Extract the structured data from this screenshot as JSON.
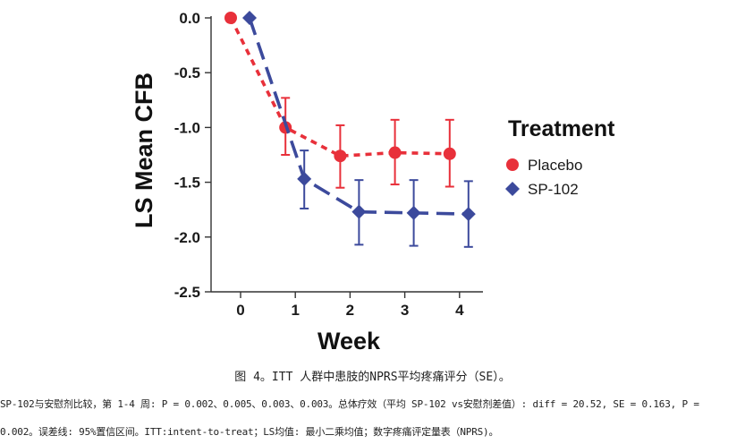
{
  "chart_data": {
    "type": "line",
    "ylabel": "LS Mean CFB",
    "xlabel": "Week",
    "ylim": [
      -2.5,
      0.0
    ],
    "yticks": [
      "0.0",
      "-0.5",
      "-1.0",
      "-1.5",
      "-2.0",
      "-2.5"
    ],
    "yticks_values": [
      0.0,
      -0.5,
      -1.0,
      -1.5,
      -2.0,
      -2.5
    ],
    "xticks": [
      "0",
      "1",
      "2",
      "3",
      "4"
    ],
    "xticks_values": [
      0,
      1,
      2,
      3,
      4
    ],
    "legend": {
      "title": "Treatment",
      "placement": "right"
    },
    "series": [
      {
        "name": "Placebo",
        "color": "#e8303a",
        "marker": "circle",
        "line_style": "short-dash",
        "x": [
          0,
          1,
          2,
          3,
          4
        ],
        "y": [
          0.0,
          -1.0,
          -1.26,
          -1.23,
          -1.24
        ],
        "ci_low": [
          null,
          -1.25,
          -1.55,
          -1.52,
          -1.54
        ],
        "ci_high": [
          null,
          -0.73,
          -0.98,
          -0.93,
          -0.93
        ]
      },
      {
        "name": "SP-102",
        "color": "#3c4a9c",
        "marker": "diamond",
        "line_style": "long-dash",
        "x": [
          0,
          1,
          2,
          3,
          4
        ],
        "y": [
          0.0,
          -1.47,
          -1.77,
          -1.78,
          -1.79
        ],
        "ci_low": [
          null,
          -1.74,
          -2.07,
          -2.08,
          -2.09
        ],
        "ci_high": [
          null,
          -1.21,
          -1.48,
          -1.48,
          -1.49
        ]
      }
    ]
  },
  "caption": {
    "title": "图 4。ITT 人群中患肢的NPRS平均疼痛评分（SE）。",
    "line1": "SP-102与安慰剂比较，第 1-4 周: P = 0.002、0.005、0.003、0.003。总体疗效（平均 SP-102 vs安慰剂差值）: diff = 20.52, SE = 0.163, P =",
    "line2": "0.002。误差线: 95%置信区间。ITT:intent-to-treat；LS均值: 最小二乘均值；数字疼痛评定量表（NPRS)。"
  }
}
